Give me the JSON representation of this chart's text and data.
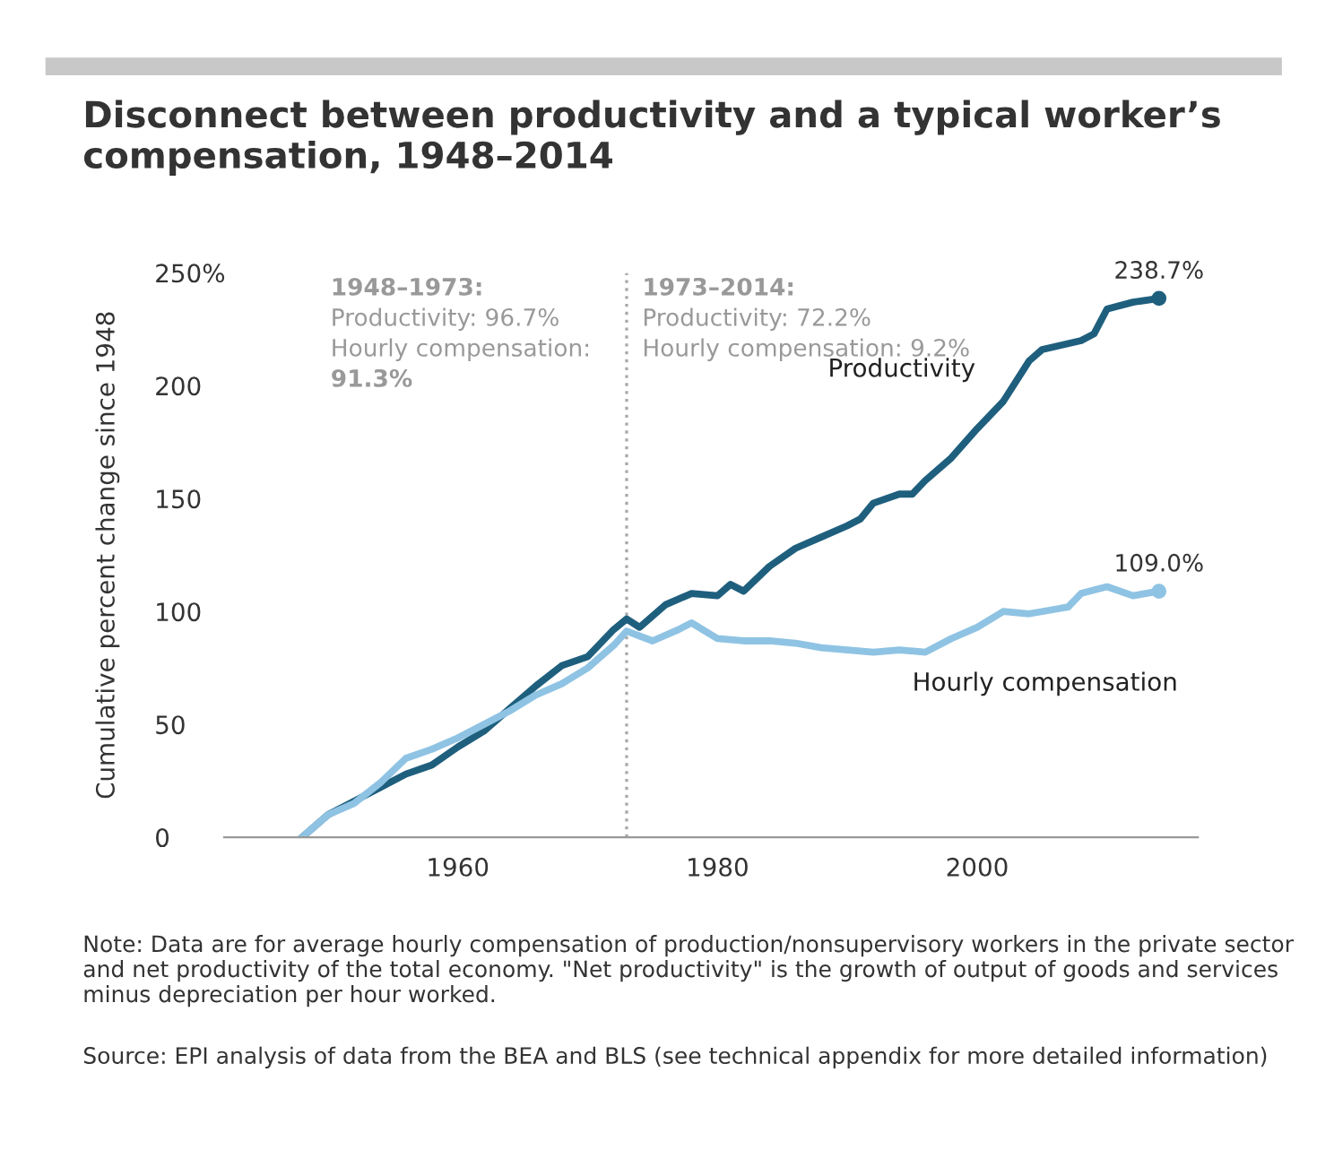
{
  "chart_data": {
    "type": "line",
    "title": "Disconnect between productivity and a typical worker’s compensation, 1948–2014",
    "ylabel": "Cumulative percent change since 1948",
    "xlim": [
      1942,
      2017
    ],
    "xticks": [
      1960,
      1980,
      2000
    ],
    "ylim": [
      0,
      250
    ],
    "yticks": [
      0,
      50,
      100,
      150,
      200,
      {
        "value": 250,
        "label": "250%"
      }
    ],
    "grid": false,
    "legend": false,
    "marker": "none",
    "line_style": "solid",
    "series": [
      {
        "name": "Productivity",
        "color": "#1f5f7e",
        "x": [
          1948,
          1950,
          1952,
          1954,
          1956,
          1958,
          1960,
          1962,
          1964,
          1966,
          1968,
          1970,
          1972,
          1973,
          1974,
          1976,
          1978,
          1980,
          1981,
          1982,
          1984,
          1986,
          1988,
          1990,
          1991,
          1992,
          1994,
          1995,
          1996,
          1998,
          2000,
          2002,
          2004,
          2005,
          2008,
          2009,
          2010,
          2012,
          2014
        ],
        "values": [
          0,
          10,
          16,
          22,
          28,
          32,
          40,
          47,
          57,
          67,
          76,
          80,
          92,
          96.7,
          93,
          103,
          108,
          107,
          112,
          109,
          120,
          128,
          133,
          138,
          141,
          148,
          152,
          152,
          158,
          168,
          181,
          193,
          211,
          216,
          220,
          223,
          234,
          237,
          238.7
        ]
      },
      {
        "name": "Hourly compensation",
        "color": "#8fc3e3",
        "x": [
          1948,
          1950,
          1952,
          1954,
          1956,
          1958,
          1960,
          1962,
          1964,
          1966,
          1968,
          1970,
          1972,
          1973,
          1975,
          1977,
          1978,
          1980,
          1982,
          1984,
          1986,
          1988,
          1990,
          1992,
          1994,
          1996,
          1998,
          2000,
          2002,
          2004,
          2006,
          2007,
          2008,
          2010,
          2012,
          2014
        ],
        "values": [
          0,
          10,
          15,
          24,
          35,
          39,
          44,
          50,
          56,
          63,
          68,
          75,
          85,
          91.3,
          87,
          92,
          95,
          88,
          87,
          87,
          86,
          84,
          83,
          82,
          83,
          82,
          88,
          93,
          100,
          99,
          101,
          102,
          108,
          111,
          107,
          109
        ]
      }
    ],
    "ref_lines": [
      {
        "axis": "x",
        "value": 1973,
        "color": "#aaaaaa",
        "line_style": "dotted"
      }
    ],
    "annotations": [
      "1948–1973:",
      "Productivity: 96.7%",
      "Hourly compensation:",
      "91.3%",
      "1973–2014:",
      "Productivity: 72.2%",
      "Hourly compensation: 9.2%",
      {
        "text": "238.7%",
        "x": 2014,
        "y": 238.7
      },
      {
        "text": "109.0%",
        "x": 2014,
        "y": 109
      },
      "Note: Data are for average hourly compensation of production/nonsupervisory workers in the private sector and net productivity of the total economy. \"Net productivity\" is the growth of output of goods and services minus depreciation per hour worked.",
      "Source: EPI analysis of data from the BEA and BLS (see technical appendix for more detailed information)"
    ]
  }
}
